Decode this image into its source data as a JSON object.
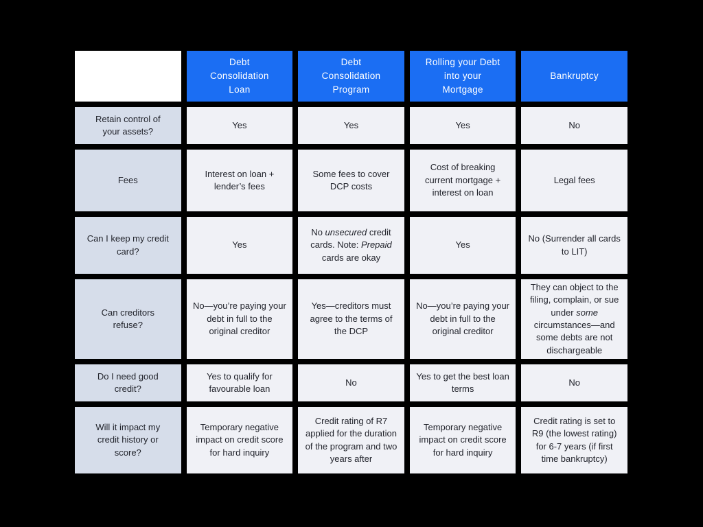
{
  "colors": {
    "page_bg": "#000000",
    "header_bg": "#1B6EF3",
    "header_text": "#FFFFFF",
    "label_bg": "#D6DDEA",
    "cell_bg": "#F0F1F6",
    "corner_bg": "#FFFFFF",
    "text": "#22242C"
  },
  "table": {
    "columns": [
      "",
      "Debt\nConsolidation\nLoan",
      "Debt\nConsolidation\nProgram",
      "Rolling your Debt\ninto your\nMortgage",
      "Bankruptcy"
    ],
    "rows": [
      {
        "label": "Retain control of\nyour assets?",
        "cells": [
          "Yes",
          "Yes",
          "Yes",
          "No"
        ]
      },
      {
        "label": "Fees",
        "cells": [
          "Interest on loan + lender’s fees",
          "Some fees to cover DCP costs",
          "Cost of breaking current mortgage + interest on loan",
          "Legal fees"
        ]
      },
      {
        "label": "Can I keep my credit\ncard?",
        "cells": [
          "Yes",
          [
            {
              "t": "No "
            },
            {
              "t": "unsecured",
              "i": true
            },
            {
              "t": " credit cards. Note: "
            },
            {
              "t": "Prepaid",
              "i": true
            },
            {
              "t": " cards are okay"
            }
          ],
          "Yes",
          "No (Surrender all cards to LIT)"
        ]
      },
      {
        "label": "Can creditors\nrefuse?",
        "cells": [
          "No—you’re paying your debt in full to the original creditor",
          "Yes—creditors must agree to the terms of the DCP",
          "No—you’re paying your debt in full to the original creditor",
          [
            {
              "t": "They can object to the filing, complain, or sue under "
            },
            {
              "t": "some",
              "i": true
            },
            {
              "t": " circumstances—and some debts are not dischargeable"
            }
          ]
        ]
      },
      {
        "label": "Do I need good\ncredit?",
        "cells": [
          "Yes to qualify for favourable loan",
          "No",
          "Yes to get the best loan terms",
          "No"
        ]
      },
      {
        "label": "Will it impact my\ncredit history or\nscore?",
        "cells": [
          "Temporary negative impact on credit score for hard inquiry",
          "Credit rating of R7 applied for the duration of the program and two years after",
          "Temporary negative impact on credit score for hard inquiry",
          "Credit rating is set to R9 (the lowest rating) for 6-7 years (if first time bankruptcy)"
        ]
      }
    ]
  },
  "chart_data": {
    "type": "table",
    "title": "Debt relief options comparison",
    "columns": [
      "",
      "Debt Consolidation Loan",
      "Debt Consolidation Program",
      "Rolling your Debt into your Mortgage",
      "Bankruptcy"
    ],
    "rows": [
      {
        "label": "Retain control of your assets?",
        "values": [
          "Yes",
          "Yes",
          "Yes",
          "No"
        ]
      },
      {
        "label": "Fees",
        "values": [
          "Interest on loan + lender’s fees",
          "Some fees to cover DCP costs",
          "Cost of breaking current mortgage + interest on loan",
          "Legal fees"
        ]
      },
      {
        "label": "Can I keep my credit card?",
        "values": [
          "Yes",
          "No unsecured credit cards. Note: Prepaid cards are okay",
          "Yes",
          "No (Surrender all cards to LIT)"
        ]
      },
      {
        "label": "Can creditors refuse?",
        "values": [
          "No—you’re paying your debt in full to the original creditor",
          "Yes—creditors must agree to the terms of the DCP",
          "No—you’re paying your debt in full to the original creditor",
          "They can object to the filing, complain, or sue under some circumstances—and some debts are not dischargeable"
        ]
      },
      {
        "label": "Do I need good credit?",
        "values": [
          "Yes to qualify for favourable loan",
          "No",
          "Yes to get the best loan terms",
          "No"
        ]
      },
      {
        "label": "Will it impact my credit history or score?",
        "values": [
          "Temporary negative impact on credit score for hard inquiry",
          "Credit rating of R7 applied for the duration of the program and two years after",
          "Temporary negative impact on credit score for hard inquiry",
          "Credit rating is set to R9 (the lowest rating) for 6-7 years (if first time bankruptcy)"
        ]
      }
    ]
  }
}
